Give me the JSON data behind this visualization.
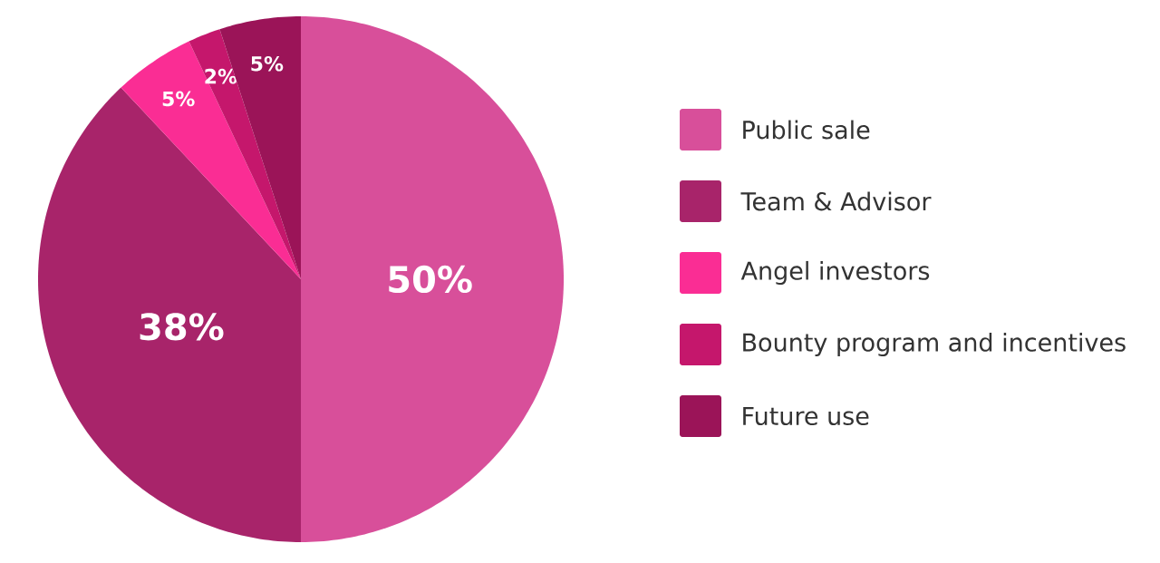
{
  "chart_data": {
    "type": "pie",
    "categories": [
      "Public sale",
      "Team & Advisor",
      "Angel investors",
      "Bounty program and incentives",
      "Future use"
    ],
    "values": [
      50,
      38,
      5,
      2,
      5
    ],
    "colors": [
      "#d84f9a",
      "#a8246a",
      "#fa2d94",
      "#c5176c",
      "#9b1458"
    ],
    "value_labels": [
      "50%",
      "38%",
      "5%",
      "2%",
      "5%"
    ],
    "legend": "right"
  }
}
